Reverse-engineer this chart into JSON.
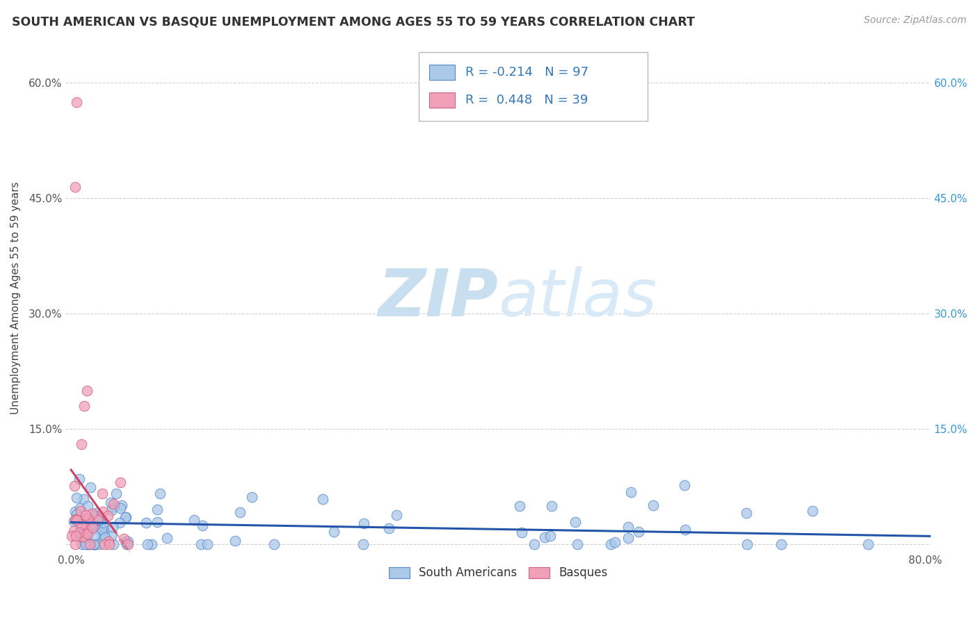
{
  "title": "SOUTH AMERICAN VS BASQUE UNEMPLOYMENT AMONG AGES 55 TO 59 YEARS CORRELATION CHART",
  "source": "Source: ZipAtlas.com",
  "ylabel_label": "Unemployment Among Ages 55 to 59 years",
  "xlim": [
    -0.005,
    0.805
  ],
  "ylim": [
    -0.01,
    0.65
  ],
  "xticks": [
    0.0,
    0.1,
    0.2,
    0.3,
    0.4,
    0.5,
    0.6,
    0.7,
    0.8
  ],
  "xticklabels": [
    "0.0%",
    "",
    "",
    "",
    "",
    "",
    "",
    "",
    "80.0%"
  ],
  "yticks": [
    0.0,
    0.15,
    0.3,
    0.45,
    0.6
  ],
  "yticklabels": [
    "",
    "15.0%",
    "30.0%",
    "45.0%",
    "60.0%"
  ],
  "right_yticklabels": [
    "",
    "15.0%",
    "30.0%",
    "45.0%",
    "60.0%"
  ],
  "south_american_R": -0.214,
  "south_american_N": 97,
  "basque_R": 0.448,
  "basque_N": 39,
  "south_american_color": "#aac8e8",
  "south_american_edge_color": "#5588cc",
  "basque_color": "#f0a0b8",
  "basque_edge_color": "#d06080",
  "trend_south_american_color": "#2255aa",
  "trend_basque_color": "#cc4466",
  "watermark_zip_color": "#c8dff0",
  "watermark_atlas_color": "#c8dff0",
  "background_color": "#ffffff",
  "grid_color": "#cccccc",
  "legend_text_color": "#3377bb",
  "title_color": "#333333",
  "right_tick_color": "#3399dd",
  "seed": 123
}
